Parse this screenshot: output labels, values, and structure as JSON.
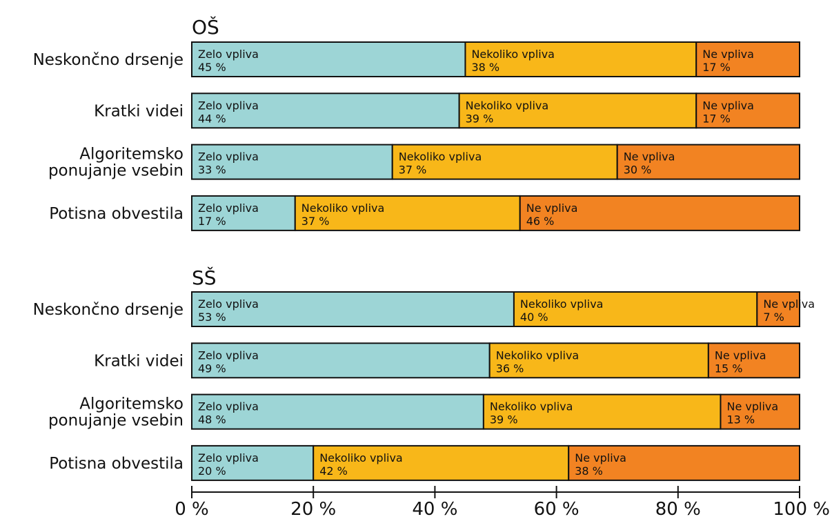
{
  "chart_data": {
    "type": "bar",
    "orientation": "horizontal",
    "stacked": true,
    "xlim": [
      0,
      100
    ],
    "x_ticks": [
      0,
      20,
      40,
      60,
      80,
      100
    ],
    "x_tick_labels": [
      "0 %",
      "20 %",
      "40 %",
      "60 %",
      "80 %",
      "100 %"
    ],
    "segment_names": [
      "Zelo vpliva",
      "Nekoliko vpliva",
      "Ne vpliva"
    ],
    "colors": [
      "#9dd5d6",
      "#f8b719",
      "#f28322"
    ],
    "groups": [
      {
        "title": "OŠ",
        "categories": [
          "Neskončno drsenje",
          "Kratki videi",
          "Algoritemsko ponujanje vsebin",
          "Potisna obvestila"
        ],
        "category_lines": [
          [
            "Neskončno drsenje"
          ],
          [
            "Kratki videi"
          ],
          [
            "Algoritemsko",
            "ponujanje vsebin"
          ],
          [
            "Potisna obvestila"
          ]
        ],
        "values": [
          [
            45,
            38,
            17
          ],
          [
            44,
            39,
            17
          ],
          [
            33,
            37,
            30
          ],
          [
            17,
            37,
            46
          ]
        ],
        "value_labels": [
          [
            "45 %",
            "38 %",
            "17 %"
          ],
          [
            "44 %",
            "39 %",
            "17 %"
          ],
          [
            "33 %",
            "37 %",
            "30 %"
          ],
          [
            "17 %",
            "37 %",
            "46 %"
          ]
        ]
      },
      {
        "title": "SŠ",
        "categories": [
          "Neskončno drsenje",
          "Kratki videi",
          "Algoritemsko ponujanje vsebin",
          "Potisna obvestila"
        ],
        "category_lines": [
          [
            "Neskončno drsenje"
          ],
          [
            "Kratki videi"
          ],
          [
            "Algoritemsko",
            "ponujanje vsebin"
          ],
          [
            "Potisna obvestila"
          ]
        ],
        "values": [
          [
            53,
            40,
            7
          ],
          [
            49,
            36,
            15
          ],
          [
            48,
            39,
            13
          ],
          [
            20,
            42,
            38
          ]
        ],
        "value_labels": [
          [
            "53 %",
            "40 %",
            "7 %"
          ],
          [
            "49 %",
            "36 %",
            "15 %"
          ],
          [
            "48 %",
            "39 %",
            "13 %"
          ],
          [
            "20 %",
            "42 %",
            "38 %"
          ]
        ]
      }
    ]
  }
}
